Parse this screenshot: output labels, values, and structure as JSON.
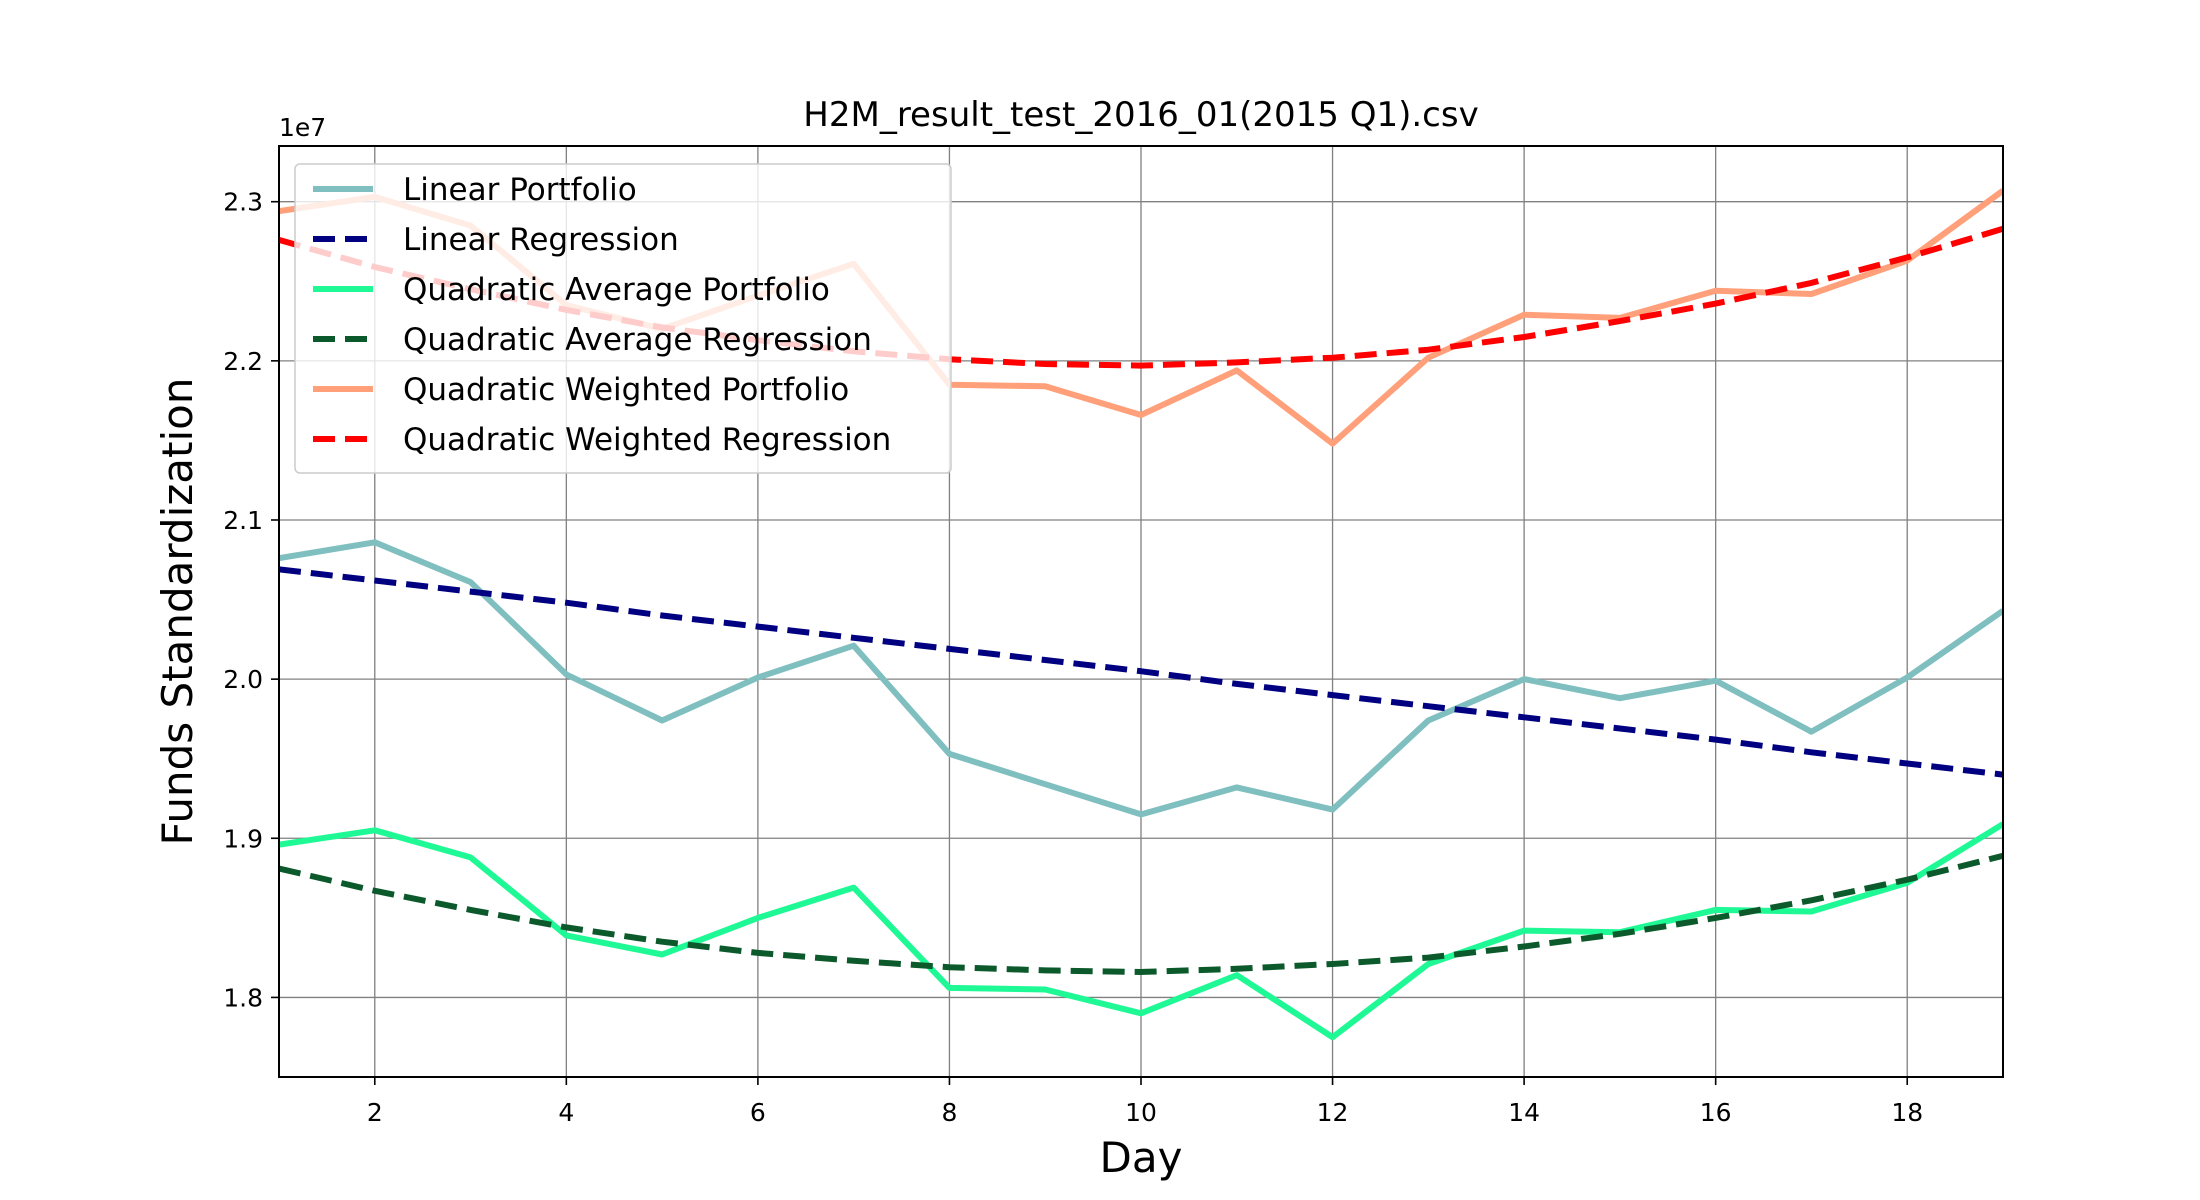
{
  "chart_data": {
    "type": "line",
    "title": "H2M_result_test_2016_01(2015 Q1).csv",
    "xlabel": "Day",
    "ylabel": "Funds Standardization",
    "y_offset_label": "1e7",
    "xlim": [
      1,
      19
    ],
    "ylim": [
      1.75,
      2.335
    ],
    "x_ticks": [
      2,
      4,
      6,
      8,
      10,
      12,
      14,
      16,
      18
    ],
    "x_tick_labels": [
      "2",
      "4",
      "6",
      "8",
      "10",
      "12",
      "14",
      "16",
      "18"
    ],
    "y_ticks": [
      1.8,
      1.9,
      2.0,
      2.1,
      2.2,
      2.3
    ],
    "y_tick_labels": [
      "1.8",
      "1.9",
      "2.0",
      "2.1",
      "2.2",
      "2.3"
    ],
    "grid": true,
    "legend_position": "top-left",
    "x": [
      1,
      2,
      3,
      4,
      5,
      6,
      7,
      8,
      9,
      10,
      11,
      12,
      13,
      14,
      15,
      16,
      17,
      18,
      19
    ],
    "series": [
      {
        "name": "Linear Portfolio",
        "color": "#7fbfbf",
        "style": "solid",
        "values": [
          2.076,
          2.086,
          2.061,
          2.003,
          1.974,
          2.001,
          2.021,
          1.953,
          1.934,
          1.915,
          1.932,
          1.918,
          1.974,
          2.0,
          1.988,
          1.999,
          1.967,
          2.001,
          2.043
        ]
      },
      {
        "name": "Linear Regression",
        "color": "#000080",
        "style": "dashed",
        "values": [
          2.069,
          2.062,
          2.055,
          2.048,
          2.04,
          2.033,
          2.026,
          2.019,
          2.012,
          2.005,
          1.997,
          1.99,
          1.983,
          1.976,
          1.969,
          1.962,
          1.954,
          1.947,
          1.94
        ]
      },
      {
        "name": "Quadratic Average Portfolio",
        "color": "#1ff995",
        "style": "solid",
        "values": [
          1.896,
          1.905,
          1.888,
          1.839,
          1.827,
          1.85,
          1.869,
          1.806,
          1.805,
          1.79,
          1.814,
          1.775,
          1.821,
          1.842,
          1.841,
          1.855,
          1.854,
          1.872,
          1.909
        ]
      },
      {
        "name": "Quadratic Average Regression",
        "color": "#0c5a2c",
        "style": "dashed",
        "values": [
          1.881,
          1.867,
          1.855,
          1.844,
          1.835,
          1.828,
          1.823,
          1.819,
          1.817,
          1.816,
          1.818,
          1.821,
          1.825,
          1.832,
          1.84,
          1.85,
          1.861,
          1.874,
          1.889
        ]
      },
      {
        "name": "Quadratic Weighted Portfolio",
        "color": "#ffa07a",
        "style": "solid",
        "values": [
          2.294,
          2.303,
          2.285,
          2.235,
          2.22,
          2.241,
          2.261,
          2.185,
          2.184,
          2.166,
          2.194,
          2.148,
          2.202,
          2.229,
          2.227,
          2.244,
          2.242,
          2.263,
          2.307
        ]
      },
      {
        "name": "Quadratic Weighted Regression",
        "color": "#ff0000",
        "style": "dashed",
        "values": [
          2.276,
          2.259,
          2.245,
          2.232,
          2.221,
          2.213,
          2.206,
          2.201,
          2.198,
          2.197,
          2.199,
          2.202,
          2.207,
          2.215,
          2.225,
          2.236,
          2.249,
          2.265,
          2.283
        ]
      }
    ]
  }
}
